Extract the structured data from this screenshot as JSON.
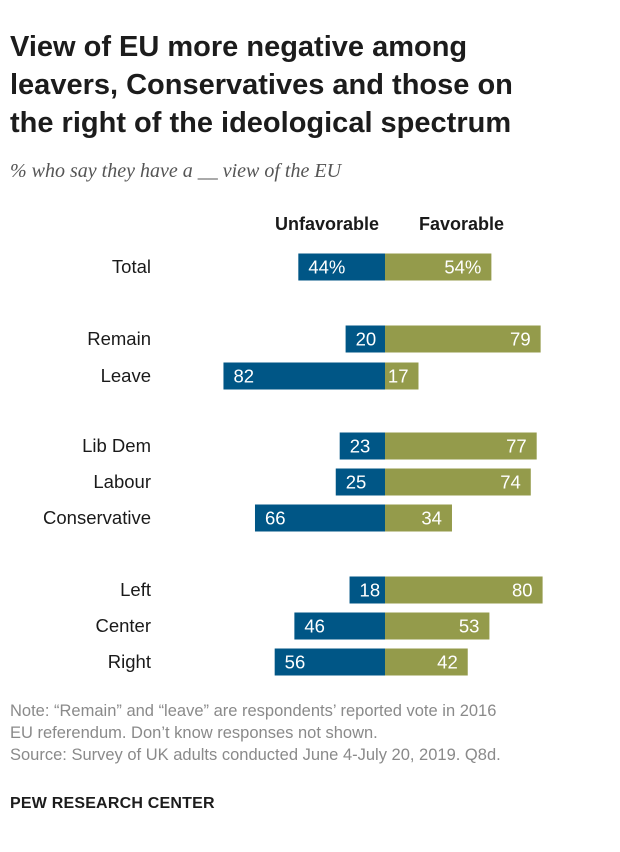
{
  "title_lines": [
    "View of EU more negative among",
    "leavers, Conservatives and those on",
    "the right of the ideological spectrum"
  ],
  "subtitle": "% who say they have a __ view of the EU",
  "chart_data": {
    "type": "bar",
    "orientation": "horizontal-diverging",
    "series": [
      {
        "name": "Unfavorable",
        "color": "#005686",
        "values": [
          44,
          20,
          82,
          23,
          25,
          66,
          18,
          46,
          56
        ]
      },
      {
        "name": "Favorable",
        "color": "#949b4b",
        "values": [
          54,
          79,
          17,
          77,
          74,
          34,
          80,
          53,
          42
        ]
      }
    ],
    "categories": [
      "Total",
      "Remain",
      "Leave",
      "Lib Dem",
      "Labour",
      "Conservative",
      "Left",
      "Center",
      "Right"
    ],
    "groups": [
      [
        "Total"
      ],
      [
        "Remain",
        "Leave"
      ],
      [
        "Lib Dem",
        "Labour",
        "Conservative"
      ],
      [
        "Left",
        "Center",
        "Right"
      ]
    ],
    "value_labels": {
      "Unfavorable": [
        "44%",
        "20",
        "82",
        "23",
        "25",
        "66",
        "18",
        "46",
        "56"
      ],
      "Favorable": [
        "54%",
        "79",
        "17",
        "77",
        "74",
        "34",
        "80",
        "53",
        "42"
      ]
    },
    "legend": "top"
  },
  "notes": {
    "note_line1": "Note: “Remain” and “leave” are respondents’ reported vote in 2016",
    "note_line2": "EU referendum. Don’t know responses not shown.",
    "source": "Source: Survey of UK adults conducted June 4-July 20, 2019. Q8d."
  },
  "brand": "PEW RESEARCH CENTER"
}
